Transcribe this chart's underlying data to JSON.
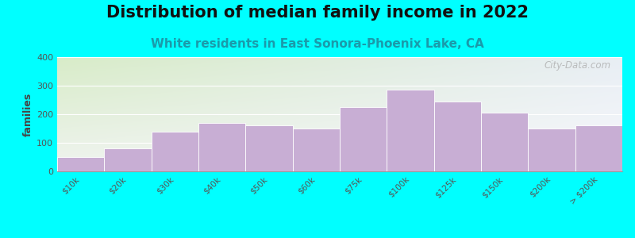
{
  "title": "Distribution of median family income in 2022",
  "subtitle": "White residents in East Sonora-Phoenix Lake, CA",
  "ylabel": "families",
  "categories": [
    "$10k",
    "$20k",
    "$30k",
    "$40k",
    "$50k",
    "$60k",
    "$75k",
    "$100k",
    "$125k",
    "$150k",
    "$200k",
    "> $200k"
  ],
  "values": [
    50,
    80,
    140,
    170,
    160,
    150,
    225,
    285,
    245,
    205,
    150,
    160
  ],
  "bar_color": "#c8aed4",
  "bar_edge_color": "#ffffff",
  "background_outer": "#00ffff",
  "ylim": [
    0,
    400
  ],
  "yticks": [
    0,
    100,
    200,
    300,
    400
  ],
  "title_fontsize": 15,
  "subtitle_fontsize": 11,
  "ylabel_fontsize": 9,
  "watermark": "City-Data.com",
  "bg_color_topleft": "#d8ecc8",
  "bg_color_topright": "#e8eef4",
  "bg_color_bottom": "#f0f0f8"
}
